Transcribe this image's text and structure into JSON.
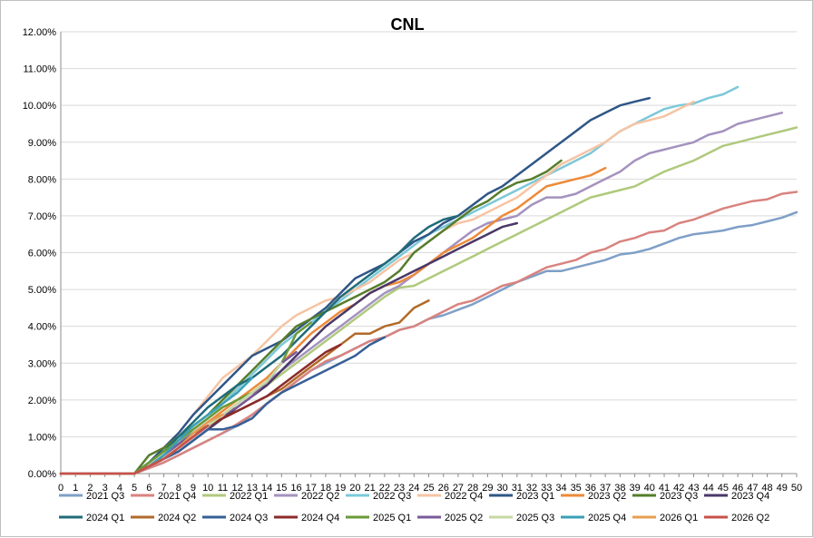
{
  "chart_data": {
    "type": "line",
    "title": "CNL",
    "xlabel": "",
    "ylabel": "",
    "xlim": [
      0,
      50
    ],
    "ylim": [
      0,
      0.12
    ],
    "x_ticks": [
      0,
      1,
      2,
      3,
      4,
      5,
      6,
      7,
      8,
      9,
      10,
      11,
      12,
      13,
      14,
      15,
      16,
      17,
      18,
      19,
      20,
      21,
      22,
      23,
      24,
      25,
      26,
      27,
      28,
      29,
      30,
      31,
      32,
      33,
      34,
      35,
      36,
      37,
      38,
      39,
      40,
      41,
      42,
      43,
      44,
      45,
      46,
      47,
      48,
      49,
      50
    ],
    "y_ticks": [
      "0.00%",
      "1.00%",
      "2.00%",
      "3.00%",
      "4.00%",
      "5.00%",
      "6.00%",
      "7.00%",
      "8.00%",
      "9.00%",
      "10.00%",
      "11.00%",
      "12.00%"
    ],
    "grid": "horizontal",
    "legend_position": "bottom",
    "series": [
      {
        "name": "2021 Q3",
        "color": "#7f9fc7",
        "values": [
          0,
          0,
          0,
          0,
          0,
          0,
          0.0015,
          0.003,
          0.005,
          0.007,
          0.009,
          0.011,
          0.013,
          0.016,
          0.019,
          0.022,
          0.025,
          0.028,
          0.03,
          0.032,
          0.034,
          0.036,
          0.037,
          0.039,
          0.04,
          0.042,
          0.043,
          0.0445,
          0.046,
          0.048,
          0.05,
          0.052,
          0.0535,
          0.055,
          0.055,
          0.056,
          0.057,
          0.058,
          0.0595,
          0.06,
          0.061,
          0.0625,
          0.064,
          0.065,
          0.0655,
          0.066,
          0.067,
          0.0675,
          0.0685,
          0.0695,
          0.071
        ]
      },
      {
        "name": "2021 Q4",
        "color": "#d9837f",
        "values": [
          0,
          0,
          0,
          0,
          0,
          0,
          0.0015,
          0.003,
          0.005,
          0.007,
          0.009,
          0.011,
          0.0135,
          0.016,
          0.019,
          0.022,
          0.025,
          0.028,
          0.0305,
          0.032,
          0.034,
          0.036,
          0.037,
          0.039,
          0.04,
          0.042,
          0.044,
          0.046,
          0.047,
          0.049,
          0.051,
          0.052,
          0.054,
          0.056,
          0.057,
          0.058,
          0.06,
          0.061,
          0.063,
          0.064,
          0.0655,
          0.066,
          0.068,
          0.069,
          0.0705,
          0.072,
          0.073,
          0.074,
          0.0745,
          0.076,
          0.0765
        ]
      },
      {
        "name": "2022 Q1",
        "color": "#b0c97d",
        "values": [
          0,
          0,
          0,
          0,
          0,
          0,
          0.002,
          0.004,
          0.006,
          0.009,
          0.012,
          0.015,
          0.018,
          0.021,
          0.024,
          0.027,
          0.03,
          0.033,
          0.036,
          0.039,
          0.042,
          0.045,
          0.048,
          0.0505,
          0.051,
          0.053,
          0.055,
          0.057,
          0.059,
          0.061,
          0.063,
          0.065,
          0.067,
          0.069,
          0.071,
          0.073,
          0.075,
          0.076,
          0.077,
          0.078,
          0.08,
          0.082,
          0.0835,
          0.085,
          0.087,
          0.089,
          0.09,
          0.091,
          0.092,
          0.093,
          0.094
        ]
      },
      {
        "name": "2022 Q2",
        "color": "#a492bf",
        "values": [
          0,
          0,
          0,
          0,
          0,
          0,
          0.002,
          0.004,
          0.007,
          0.01,
          0.013,
          0.016,
          0.019,
          0.022,
          0.025,
          0.028,
          0.031,
          0.034,
          0.037,
          0.04,
          0.043,
          0.046,
          0.049,
          0.051,
          0.054,
          0.057,
          0.06,
          0.063,
          0.066,
          0.068,
          0.069,
          0.07,
          0.073,
          0.075,
          0.075,
          0.076,
          0.078,
          0.08,
          0.082,
          0.085,
          0.087,
          0.088,
          0.089,
          0.09,
          0.092,
          0.093,
          0.095,
          0.096,
          0.097,
          0.098
        ]
      },
      {
        "name": "2022 Q3",
        "color": "#7cc8d8",
        "values": [
          0,
          0,
          0,
          0,
          0,
          0,
          0.002,
          0.005,
          0.008,
          0.012,
          0.015,
          0.019,
          0.023,
          0.027,
          0.031,
          0.035,
          0.038,
          0.041,
          0.044,
          0.047,
          0.05,
          0.053,
          0.056,
          0.059,
          0.062,
          0.065,
          0.067,
          0.069,
          0.071,
          0.073,
          0.075,
          0.077,
          0.079,
          0.081,
          0.083,
          0.085,
          0.087,
          0.09,
          0.093,
          0.095,
          0.097,
          0.099,
          0.1,
          0.1005,
          0.102,
          0.103,
          0.105
        ]
      },
      {
        "name": "2022 Q4",
        "color": "#f6c4a4",
        "values": [
          0,
          0,
          0,
          0,
          0,
          0,
          0.003,
          0.007,
          0.011,
          0.016,
          0.021,
          0.026,
          0.029,
          0.032,
          0.036,
          0.04,
          0.043,
          0.045,
          0.047,
          0.048,
          0.05,
          0.052,
          0.055,
          0.058,
          0.06,
          0.063,
          0.066,
          0.068,
          0.069,
          0.071,
          0.073,
          0.075,
          0.078,
          0.081,
          0.084,
          0.086,
          0.088,
          0.09,
          0.093,
          0.095,
          0.096,
          0.097,
          0.099,
          0.101
        ]
      },
      {
        "name": "2023 Q1",
        "color": "#2f5687",
        "values": [
          0,
          0,
          0,
          0,
          0,
          0,
          0.003,
          0.007,
          0.011,
          0.016,
          0.02,
          0.024,
          0.028,
          0.032,
          0.034,
          0.036,
          0.039,
          0.042,
          0.045,
          0.049,
          0.053,
          0.055,
          0.057,
          0.06,
          0.063,
          0.065,
          0.068,
          0.07,
          0.073,
          0.076,
          0.078,
          0.081,
          0.084,
          0.087,
          0.09,
          0.093,
          0.096,
          0.098,
          0.1,
          0.101,
          0.102
        ]
      },
      {
        "name": "2023 Q2",
        "color": "#ed8a3a",
        "values": [
          0,
          0,
          0,
          0,
          0,
          0,
          0.002,
          0.005,
          0.008,
          0.011,
          0.014,
          0.017,
          0.02,
          0.023,
          0.026,
          0.03,
          0.034,
          0.038,
          0.041,
          0.044,
          0.046,
          0.049,
          0.051,
          0.052,
          0.054,
          0.057,
          0.06,
          0.062,
          0.064,
          0.067,
          0.07,
          0.072,
          0.075,
          0.078,
          0.079,
          0.08,
          0.081,
          0.083
        ]
      },
      {
        "name": "2023 Q3",
        "color": "#567d2c",
        "values": [
          0,
          0,
          0,
          0,
          0,
          0,
          0.005,
          0.007,
          0.01,
          0.013,
          0.016,
          0.02,
          0.024,
          0.028,
          0.032,
          0.036,
          0.04,
          0.042,
          0.044,
          0.046,
          0.048,
          0.05,
          0.052,
          0.055,
          0.06,
          0.063,
          0.066,
          0.069,
          0.072,
          0.074,
          0.077,
          0.079,
          0.08,
          0.082,
          0.085
        ]
      },
      {
        "name": "2023 Q4",
        "color": "#4a3868",
        "values": [
          0,
          0,
          0,
          0,
          0,
          0,
          0.002,
          0.004,
          0.006,
          0.009,
          0.012,
          0.015,
          0.018,
          0.021,
          0.024,
          0.028,
          0.032,
          0.036,
          0.04,
          0.043,
          0.046,
          0.049,
          0.051,
          0.053,
          0.055,
          0.057,
          0.059,
          0.061,
          0.063,
          0.065,
          0.067,
          0.068
        ]
      },
      {
        "name": "2024 Q1",
        "color": "#1f6b7a",
        "values": [
          0,
          0,
          0,
          0,
          0,
          0,
          0.003,
          0.006,
          0.01,
          0.014,
          0.018,
          0.021,
          0.024,
          0.026,
          0.029,
          0.032,
          0.036,
          0.04,
          0.044,
          0.048,
          0.051,
          0.054,
          0.057,
          0.06,
          0.064,
          0.067,
          0.069,
          0.07
        ]
      },
      {
        "name": "2024 Q2",
        "color": "#b26a28",
        "values": [
          0,
          0,
          0,
          0,
          0,
          0,
          0.002,
          0.005,
          0.008,
          0.011,
          0.013,
          0.015,
          0.017,
          0.019,
          0.021,
          0.023,
          0.026,
          0.029,
          0.032,
          0.035,
          0.038,
          0.038,
          0.04,
          0.041,
          0.045,
          0.047
        ]
      },
      {
        "name": "2024 Q3",
        "color": "#365f96",
        "values": [
          0,
          0,
          0,
          0,
          0,
          0,
          0.002,
          0.004,
          0.006,
          0.009,
          0.012,
          0.012,
          0.013,
          0.015,
          0.019,
          0.022,
          0.024,
          0.026,
          0.028,
          0.03,
          0.032,
          0.035,
          0.037
        ]
      },
      {
        "name": "2024 Q4",
        "color": "#8b2a2a",
        "values": [
          0,
          0,
          0,
          0,
          0,
          0,
          0.002,
          0.004,
          0.007,
          0.01,
          0.013,
          0.015,
          0.017,
          0.019,
          0.021,
          0.024,
          0.027,
          0.03,
          0.033,
          0.035
        ]
      },
      {
        "name": "2025 Q1",
        "color": "#6a9a37",
        "values": [
          0,
          0,
          0,
          0,
          0,
          0,
          0.003,
          0.006,
          0.009,
          0.012,
          0.015,
          0.018,
          0.02,
          0.022,
          0.025,
          0.03,
          0.038,
          0.041
        ]
      },
      {
        "name": "2025 Q2",
        "color": "#7a5a99",
        "values": [
          0,
          0,
          0,
          0,
          0,
          0,
          0.002,
          0.005,
          0.008,
          0.011,
          0.014,
          0.016,
          0.018,
          0.021,
          0.025,
          0.03,
          0.033
        ]
      },
      {
        "name": "2025 Q3",
        "color": "#c7d9a3",
        "values": [
          0,
          0,
          0,
          0,
          0,
          0,
          0.002,
          0.004,
          0.007,
          0.01,
          0.013,
          0.016,
          0.019,
          0.022,
          0.025,
          0.03
        ]
      },
      {
        "name": "2025 Q4",
        "color": "#3aa0b5",
        "values": [
          0,
          0,
          0,
          0,
          0,
          0,
          0.002,
          0.005,
          0.009,
          0.013,
          0.016,
          0.019,
          0.022,
          0.026
        ]
      },
      {
        "name": "2026 Q1",
        "color": "#e69f50",
        "values": [
          0,
          0,
          0,
          0,
          0,
          0,
          0.002,
          0.004,
          0.007,
          0.011,
          0.014,
          0.016
        ]
      },
      {
        "name": "2026 Q2",
        "color": "#c8504a",
        "values": [
          0,
          0,
          0,
          0,
          0,
          0,
          0.002,
          0.004,
          0.007,
          0.01,
          0.013
        ]
      }
    ]
  }
}
